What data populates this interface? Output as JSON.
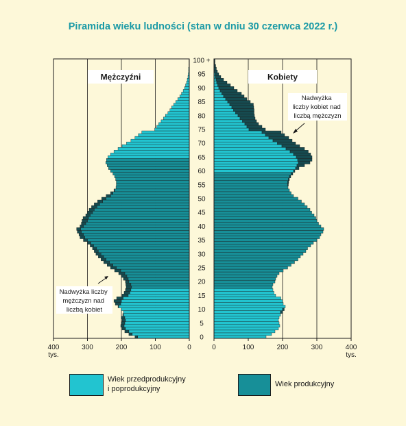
{
  "title": "Piramida wieku ludności (stan w dniu 30 czerwca 2022 r.)",
  "labels": {
    "men": "Mężczyźni",
    "women": "Kobiety",
    "note_women": [
      "Nadwyżka",
      "liczby kobiet nad",
      "liczbą mężczyzn"
    ],
    "note_men": [
      "Nadwyżka liczby",
      "mężczyzn nad",
      "liczbą kobiet"
    ],
    "unit_left": "tys.",
    "unit_right": "tys."
  },
  "legend": {
    "item1_line1": "Wiek przedprodukcyjny",
    "item1_line2": "i poprodukcyjny",
    "item2": "Wiek produkcyjny"
  },
  "colors": {
    "nonworking": "#22c4d0",
    "working": "#178f98",
    "excess": "#164b50",
    "title": "#1b9aa6",
    "background": "#fdf8d9"
  },
  "chart_data": {
    "type": "bar",
    "orientation": "horizontal-pyramid",
    "title": "Piramida wieku ludności (stan w dniu 30 czerwca 2022 r.)",
    "age_tick_labels": [
      "0",
      "5",
      "10",
      "15",
      "20",
      "25",
      "30",
      "35",
      "40",
      "45",
      "50",
      "55",
      "60",
      "65",
      "70",
      "75",
      "80",
      "85",
      "90",
      "95",
      "100 +"
    ],
    "x_ticks_left": [
      "400",
      "300",
      "200",
      "100",
      "0"
    ],
    "x_ticks_right": [
      "0",
      "100",
      "200",
      "300",
      "400"
    ],
    "xlim": [
      0,
      400
    ],
    "unit": "tys.",
    "working_age": {
      "men": [
        18,
        64
      ],
      "women": [
        18,
        59
      ]
    },
    "series": [
      {
        "name": "Mężczyźni",
        "ages": [
          0,
          1,
          2,
          3,
          4,
          5,
          6,
          7,
          8,
          9,
          10,
          11,
          12,
          13,
          14,
          15,
          16,
          17,
          18,
          19,
          20,
          21,
          22,
          23,
          24,
          25,
          26,
          27,
          28,
          29,
          30,
          31,
          32,
          33,
          34,
          35,
          36,
          37,
          38,
          39,
          40,
          41,
          42,
          43,
          44,
          45,
          46,
          47,
          48,
          49,
          50,
          51,
          52,
          53,
          54,
          55,
          56,
          57,
          58,
          59,
          60,
          61,
          62,
          63,
          64,
          65,
          66,
          67,
          68,
          69,
          70,
          71,
          72,
          73,
          74,
          75,
          76,
          77,
          78,
          79,
          80,
          81,
          82,
          83,
          84,
          85,
          86,
          87,
          88,
          89,
          90,
          91,
          92,
          93,
          94,
          95,
          96,
          97,
          98,
          99,
          100
        ],
        "values": [
          160,
          178,
          190,
          198,
          202,
          200,
          198,
          200,
          196,
          194,
          200,
          210,
          218,
          222,
          214,
          198,
          192,
          188,
          186,
          187,
          188,
          194,
          200,
          208,
          220,
          232,
          242,
          252,
          260,
          268,
          275,
          280,
          285,
          292,
          300,
          312,
          322,
          325,
          330,
          332,
          322,
          318,
          316,
          313,
          305,
          300,
          295,
          288,
          280,
          270,
          258,
          245,
          232,
          222,
          216,
          215,
          215,
          217,
          220,
          225,
          232,
          238,
          242,
          246,
          244,
          240,
          232,
          222,
          210,
          198,
          185,
          172,
          160,
          150,
          140,
          102,
          96,
          90,
          83,
          76,
          70,
          63,
          57,
          52,
          46,
          40,
          34,
          28,
          23,
          18,
          14,
          11,
          8,
          6,
          4,
          3,
          2,
          2,
          1,
          1,
          1
        ]
      },
      {
        "name": "Kobiety",
        "ages": [
          0,
          1,
          2,
          3,
          4,
          5,
          6,
          7,
          8,
          9,
          10,
          11,
          12,
          13,
          14,
          15,
          16,
          17,
          18,
          19,
          20,
          21,
          22,
          23,
          24,
          25,
          26,
          27,
          28,
          29,
          30,
          31,
          32,
          33,
          34,
          35,
          36,
          37,
          38,
          39,
          40,
          41,
          42,
          43,
          44,
          45,
          46,
          47,
          48,
          49,
          50,
          51,
          52,
          53,
          54,
          55,
          56,
          57,
          58,
          59,
          60,
          61,
          62,
          63,
          64,
          65,
          66,
          67,
          68,
          69,
          70,
          71,
          72,
          73,
          74,
          75,
          76,
          77,
          78,
          79,
          80,
          81,
          82,
          83,
          84,
          85,
          86,
          87,
          88,
          89,
          90,
          91,
          92,
          93,
          94,
          95,
          96,
          97,
          98,
          99,
          100
        ],
        "values": [
          152,
          168,
          178,
          188,
          192,
          190,
          188,
          190,
          194,
          200,
          205,
          208,
          202,
          200,
          195,
          180,
          175,
          172,
          170,
          172,
          178,
          180,
          184,
          190,
          202,
          215,
          225,
          235,
          245,
          252,
          260,
          268,
          273,
          282,
          290,
          300,
          308,
          312,
          318,
          320,
          312,
          305,
          300,
          297,
          292,
          285,
          280,
          272,
          264,
          255,
          245,
          232,
          225,
          220,
          216,
          217,
          218,
          220,
          224,
          230,
          236,
          248,
          264,
          280,
          286,
          286,
          282,
          275,
          264,
          250,
          238,
          228,
          218,
          206,
          196,
          150,
          140,
          130,
          124,
          120,
          118,
          117,
          117,
          116,
          115,
          106,
          96,
          88,
          80,
          68,
          58,
          48,
          38,
          28,
          20,
          14,
          10,
          7,
          5,
          3,
          3
        ]
      }
    ]
  }
}
